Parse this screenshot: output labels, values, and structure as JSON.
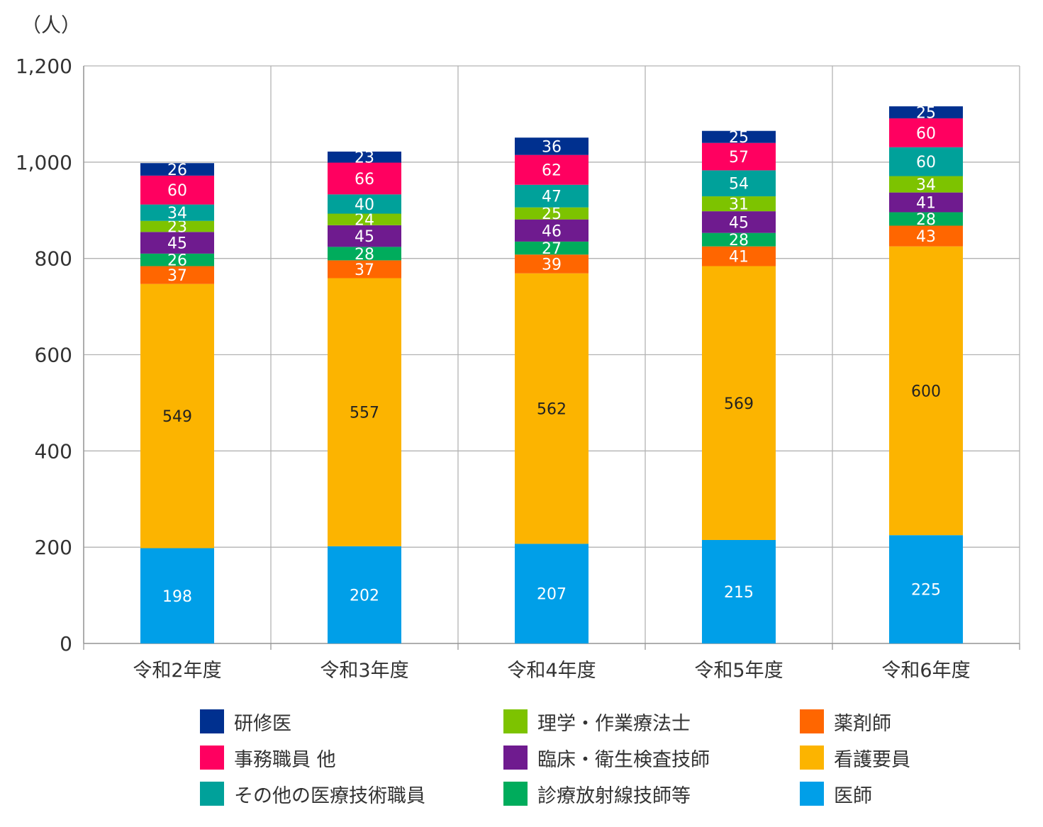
{
  "chart_data": {
    "type": "bar",
    "stacked": true,
    "unit_label": "（人）",
    "title": "",
    "xlabel": "",
    "ylabel": "",
    "ylim": [
      0,
      1200
    ],
    "yticks": [
      0,
      200,
      400,
      600,
      800,
      1000,
      1200
    ],
    "ytick_labels": [
      "0",
      "200",
      "400",
      "600",
      "800",
      "1,000",
      "1,200"
    ],
    "grid": true,
    "categories": [
      "令和2年度",
      "令和3年度",
      "令和4年度",
      "令和5年度",
      "令和6年度"
    ],
    "series": [
      {
        "name": "医師",
        "color": "#009fe8",
        "label_color": "#ffffff",
        "values": [
          198,
          202,
          207,
          215,
          225
        ]
      },
      {
        "name": "看護要員",
        "color": "#fcb400",
        "label_color": "#222222",
        "values": [
          549,
          557,
          562,
          569,
          600
        ]
      },
      {
        "name": "薬剤師",
        "color": "#ff6600",
        "label_color": "#ffffff",
        "values": [
          37,
          37,
          39,
          41,
          43
        ]
      },
      {
        "name": "診療放射線技師等",
        "color": "#00ac5c",
        "label_color": "#ffffff",
        "values": [
          26,
          28,
          27,
          28,
          28
        ]
      },
      {
        "name": "臨床・衛生検査技師",
        "color": "#6f1b8f",
        "label_color": "#ffffff",
        "values": [
          45,
          45,
          46,
          45,
          41
        ]
      },
      {
        "name": "理学・作業療法士",
        "color": "#7dc300",
        "label_color": "#ffffff",
        "values": [
          23,
          24,
          25,
          31,
          34
        ]
      },
      {
        "name": "その他の医療技術職員",
        "color": "#00a19a",
        "label_color": "#ffffff",
        "values": [
          34,
          40,
          47,
          54,
          60
        ]
      },
      {
        "name": "事務職員 他",
        "color": "#ff0060",
        "label_color": "#ffffff",
        "values": [
          60,
          66,
          62,
          57,
          60
        ]
      },
      {
        "name": "研修医",
        "color": "#00308f",
        "label_color": "#ffffff",
        "values": [
          26,
          23,
          36,
          25,
          25
        ]
      }
    ],
    "legend": {
      "placement": "bottom",
      "order": [
        "研修医",
        "理学・作業療法士",
        "薬剤師",
        "事務職員 他",
        "臨床・衛生検査技師",
        "看護要員",
        "その他の医療技術職員",
        "診療放射線技師等",
        "医師"
      ]
    }
  }
}
